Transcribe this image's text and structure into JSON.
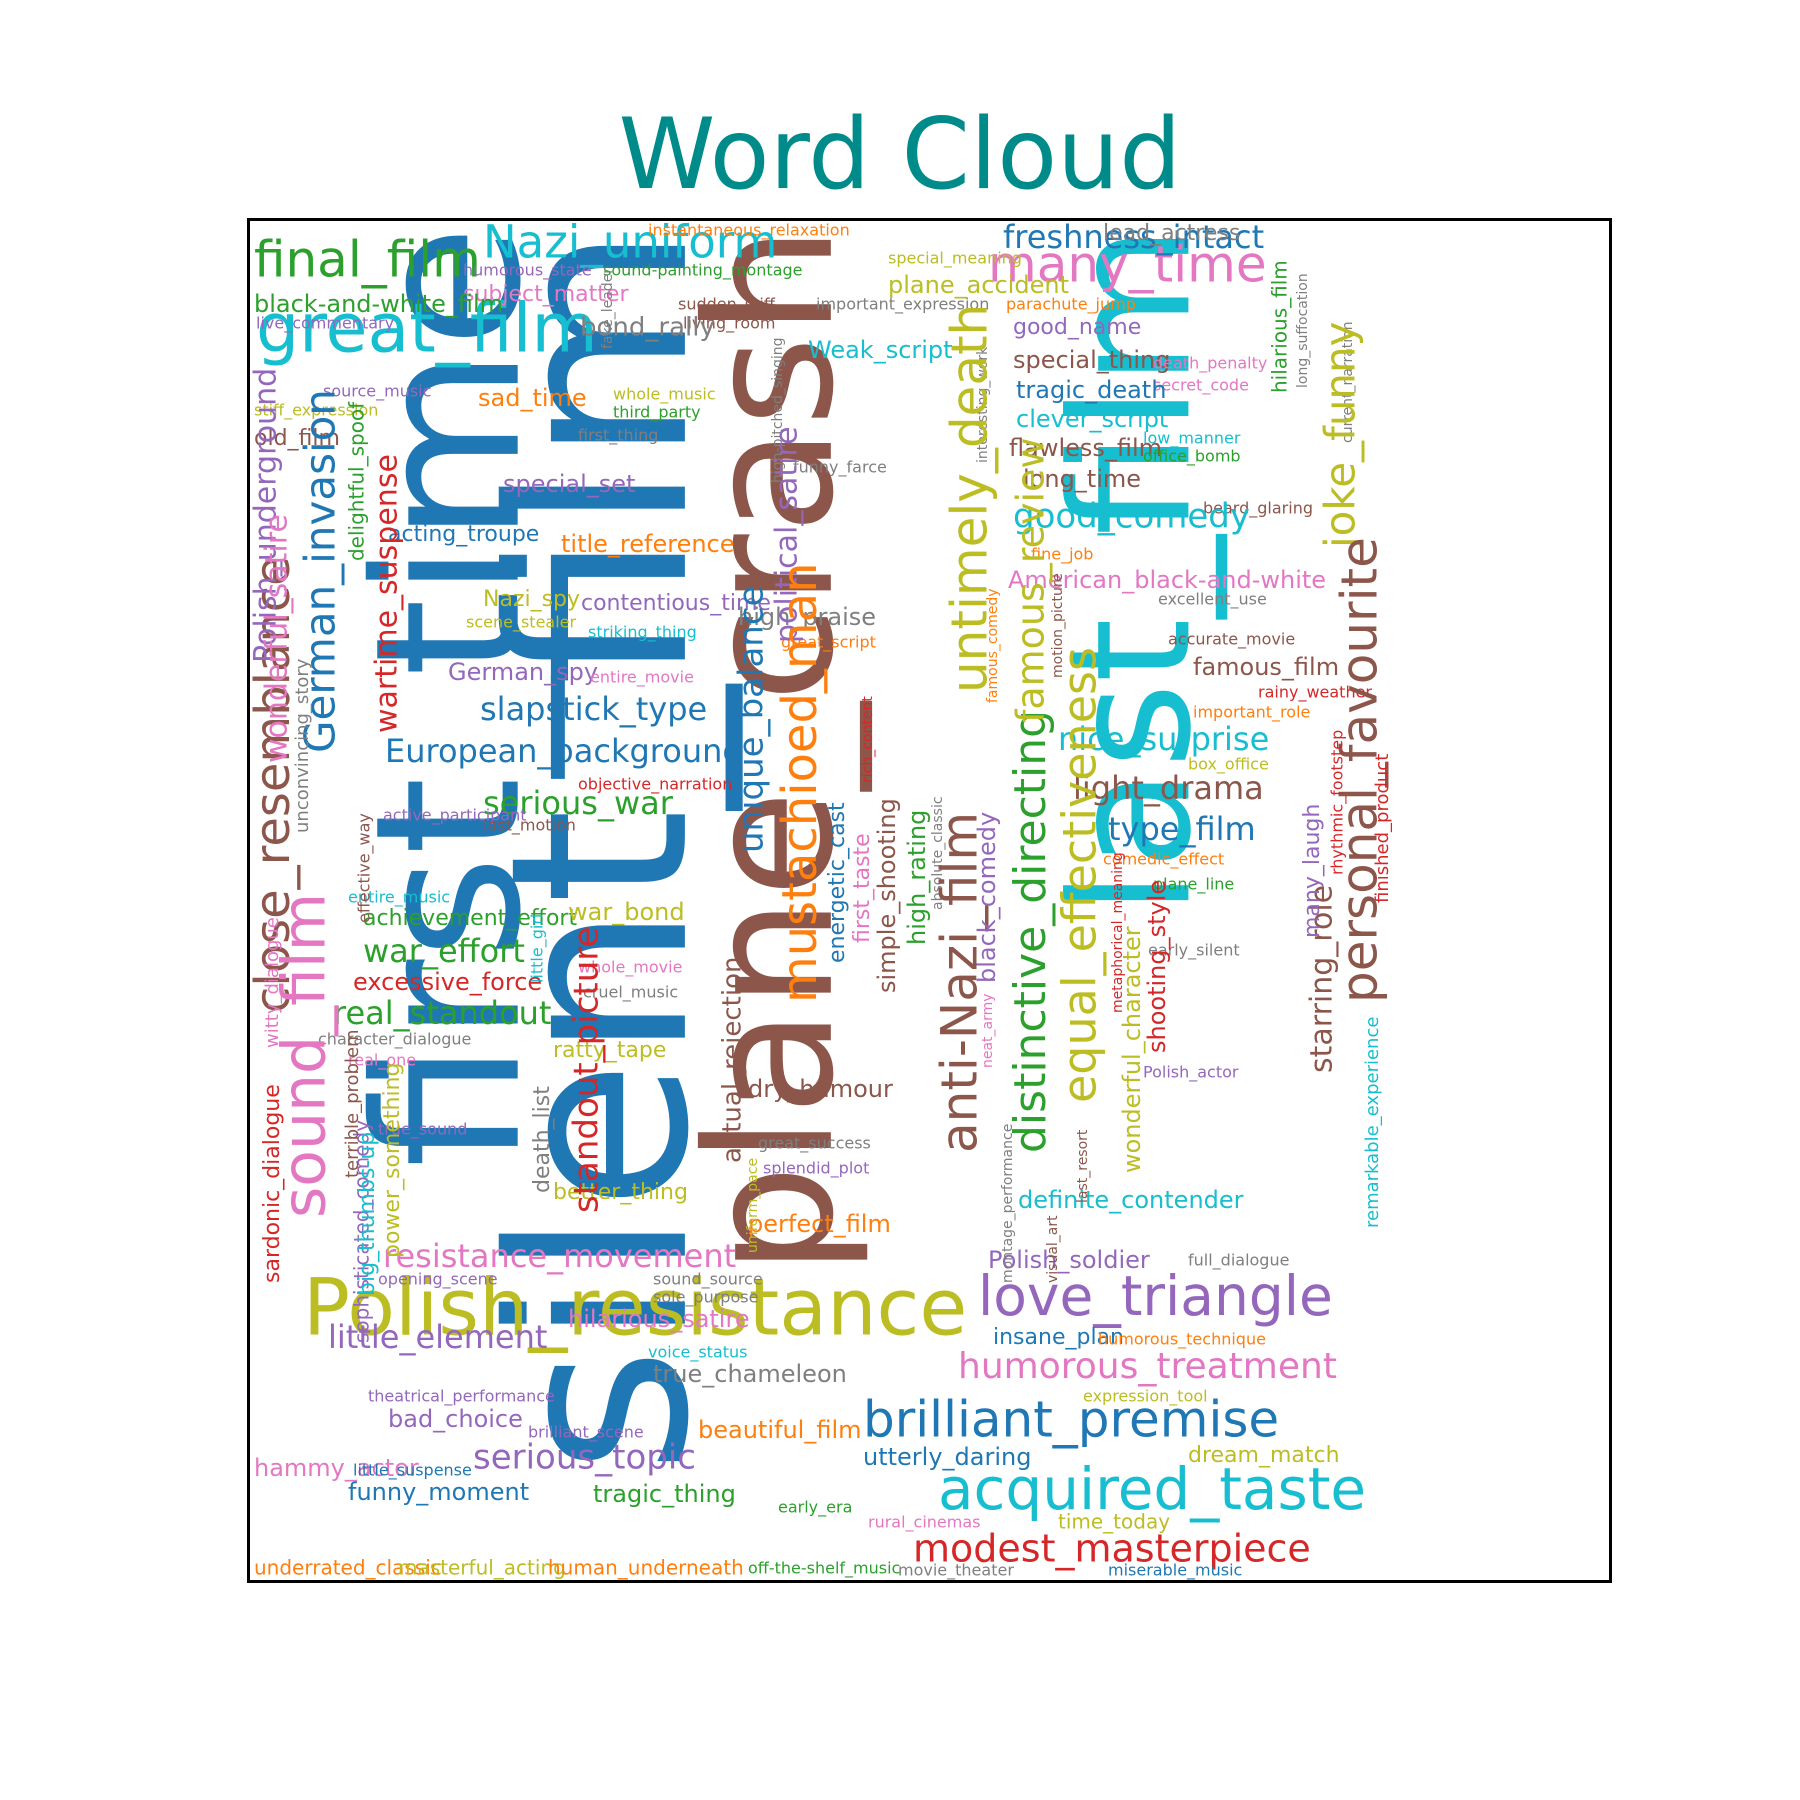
{
  "title": "Word Cloud",
  "palette": {
    "blue": "#1f77b4",
    "orange": "#ff7f0e",
    "green": "#2ca02c",
    "red": "#d62728",
    "purple": "#9467bd",
    "brown": "#8c564b",
    "pink": "#e377c2",
    "gray": "#7f7f7f",
    "olive": "#bcbd22",
    "cyan": "#17becf"
  },
  "words": [
    {
      "text": "plane_crash",
      "color": "brown"
    },
    {
      "text": "silent_film",
      "color": "blue"
    },
    {
      "text": "first_time",
      "color": "blue"
    },
    {
      "text": "last_film",
      "color": "cyan"
    },
    {
      "text": "Polish_resistance",
      "color": "olive"
    },
    {
      "text": "great_film",
      "color": "cyan"
    },
    {
      "text": "final_film",
      "color": "green"
    },
    {
      "text": "Nazi_uniform",
      "color": "cyan"
    },
    {
      "text": "many_time",
      "color": "pink"
    },
    {
      "text": "freshness_intact",
      "color": "blue"
    },
    {
      "text": "lead_actress",
      "color": "gray"
    },
    {
      "text": "instantaneous_relaxation",
      "color": "orange"
    },
    {
      "text": "special_meaning",
      "color": "olive"
    },
    {
      "text": "plane_accident",
      "color": "olive"
    },
    {
      "text": "humorous_state",
      "color": "purple"
    },
    {
      "text": "sound-painting_montage",
      "color": "green"
    },
    {
      "text": "subject_matter",
      "color": "pink"
    },
    {
      "text": "black-and-white_film",
      "color": "green"
    },
    {
      "text": "live_commentary",
      "color": "purple"
    },
    {
      "text": "sudden_stiff",
      "color": "brown"
    },
    {
      "text": "important_expression",
      "color": "gray"
    },
    {
      "text": "parachute_jump",
      "color": "orange"
    },
    {
      "text": "living_room",
      "color": "brown"
    },
    {
      "text": "bond_rally",
      "color": "gray"
    },
    {
      "text": "good_name",
      "color": "purple"
    },
    {
      "text": "fake_leader",
      "color": "gray"
    },
    {
      "text": "Weak_script",
      "color": "cyan"
    },
    {
      "text": "special_thing",
      "color": "brown"
    },
    {
      "text": "death_penalty",
      "color": "pink"
    },
    {
      "text": "secret_code",
      "color": "pink"
    },
    {
      "text": "tragic_death",
      "color": "blue"
    },
    {
      "text": "clever_script",
      "color": "cyan"
    },
    {
      "text": "source_music",
      "color": "purple"
    },
    {
      "text": "whole_music",
      "color": "olive"
    },
    {
      "text": "third_party",
      "color": "green"
    },
    {
      "text": "sad_time",
      "color": "orange"
    },
    {
      "text": "stiff_expression",
      "color": "olive"
    },
    {
      "text": "old_film",
      "color": "brown"
    },
    {
      "text": "first_thing",
      "color": "gray"
    },
    {
      "text": "flawless_film",
      "color": "brown"
    },
    {
      "text": "low_manner",
      "color": "cyan"
    },
    {
      "text": "office_bomb",
      "color": "green"
    },
    {
      "text": "hilarious_film",
      "color": "green"
    },
    {
      "text": "long_suffocation",
      "color": "gray"
    },
    {
      "text": "current_narration",
      "color": "gray"
    },
    {
      "text": "funny_farce",
      "color": "gray"
    },
    {
      "text": "long_time",
      "color": "brown"
    },
    {
      "text": "special_set",
      "color": "purple"
    },
    {
      "text": "beard_glaring",
      "color": "brown"
    },
    {
      "text": "good_comedy",
      "color": "cyan"
    },
    {
      "text": "acting_troupe",
      "color": "blue"
    },
    {
      "text": "title_reference",
      "color": "orange"
    },
    {
      "text": "high-pitched_singing",
      "color": "gray"
    },
    {
      "text": "interesting_work",
      "color": "gray"
    },
    {
      "text": "fine_job",
      "color": "orange"
    },
    {
      "text": "American_black-and-white",
      "color": "pink"
    },
    {
      "text": "Nazi_spy",
      "color": "olive"
    },
    {
      "text": "excellent_use",
      "color": "gray"
    },
    {
      "text": "contentious_time",
      "color": "purple"
    },
    {
      "text": "high_praise",
      "color": "gray"
    },
    {
      "text": "scene_stealer",
      "color": "olive"
    },
    {
      "text": "striking_thing",
      "color": "cyan"
    },
    {
      "text": "great_script",
      "color": "orange"
    },
    {
      "text": "accurate_movie",
      "color": "brown"
    },
    {
      "text": "German_spy",
      "color": "purple"
    },
    {
      "text": "entire_movie",
      "color": "pink"
    },
    {
      "text": "famous_film",
      "color": "brown"
    },
    {
      "text": "rainy_weather",
      "color": "red"
    },
    {
      "text": "important_role",
      "color": "orange"
    },
    {
      "text": "slapstick_type",
      "color": "blue"
    },
    {
      "text": "nice_surprise",
      "color": "cyan"
    },
    {
      "text": "European_background",
      "color": "blue"
    },
    {
      "text": "box_office",
      "color": "olive"
    },
    {
      "text": "objective_narration",
      "color": "red"
    },
    {
      "text": "light_drama",
      "color": "brown"
    },
    {
      "text": "serious_war",
      "color": "green"
    },
    {
      "text": "active_participant",
      "color": "purple"
    },
    {
      "text": "last_motion",
      "color": "brown"
    },
    {
      "text": "type_film",
      "color": "blue"
    },
    {
      "text": "comedic_effect",
      "color": "orange"
    },
    {
      "text": "entire_music",
      "color": "cyan"
    },
    {
      "text": "plane_line",
      "color": "green"
    },
    {
      "text": "achievement_effort",
      "color": "green"
    },
    {
      "text": "war_bond",
      "color": "olive"
    },
    {
      "text": "war_effort",
      "color": "green"
    },
    {
      "text": "early_silent",
      "color": "gray"
    },
    {
      "text": "whole_movie",
      "color": "pink"
    },
    {
      "text": "excessive_force",
      "color": "red"
    },
    {
      "text": "cruel_music",
      "color": "gray"
    },
    {
      "text": "real_standout",
      "color": "green"
    },
    {
      "text": "character_dialogue",
      "color": "gray"
    },
    {
      "text": "ratty_tape",
      "color": "olive"
    },
    {
      "text": "real_one",
      "color": "pink"
    },
    {
      "text": "Polish_actor",
      "color": "purple"
    },
    {
      "text": "dry_humour",
      "color": "brown"
    },
    {
      "text": "true_sound",
      "color": "purple"
    },
    {
      "text": "great_success",
      "color": "gray"
    },
    {
      "text": "splendid_plot",
      "color": "purple"
    },
    {
      "text": "better_thing",
      "color": "olive"
    },
    {
      "text": "definite_contender",
      "color": "cyan"
    },
    {
      "text": "perfect_film",
      "color": "orange"
    },
    {
      "text": "resistance_movement",
      "color": "pink"
    },
    {
      "text": "Polish_soldier",
      "color": "purple"
    },
    {
      "text": "full_dialogue",
      "color": "gray"
    },
    {
      "text": "opening_scene",
      "color": "purple"
    },
    {
      "text": "sound_source",
      "color": "gray"
    },
    {
      "text": "sole_purpose",
      "color": "gray"
    },
    {
      "text": "love_triangle",
      "color": "purple"
    },
    {
      "text": "hilarious_satire",
      "color": "pink"
    },
    {
      "text": "little_element",
      "color": "purple"
    },
    {
      "text": "insane_plan",
      "color": "blue"
    },
    {
      "text": "humorous_technique",
      "color": "orange"
    },
    {
      "text": "voice_status",
      "color": "cyan"
    },
    {
      "text": "humorous_treatment",
      "color": "pink"
    },
    {
      "text": "true_chameleon",
      "color": "gray"
    },
    {
      "text": "theatrical_performance",
      "color": "purple"
    },
    {
      "text": "expression_tool",
      "color": "olive"
    },
    {
      "text": "brilliant_premise",
      "color": "blue"
    },
    {
      "text": "bad_choice",
      "color": "purple"
    },
    {
      "text": "brilliant_scene",
      "color": "purple"
    },
    {
      "text": "beautiful_film",
      "color": "orange"
    },
    {
      "text": "serious_topic",
      "color": "purple"
    },
    {
      "text": "utterly_daring",
      "color": "blue"
    },
    {
      "text": "dream_match",
      "color": "olive"
    },
    {
      "text": "hammy_actor",
      "color": "pink"
    },
    {
      "text": "little_suspense",
      "color": "blue"
    },
    {
      "text": "acquired_taste",
      "color": "cyan"
    },
    {
      "text": "funny_moment",
      "color": "blue"
    },
    {
      "text": "tragic_thing",
      "color": "green"
    },
    {
      "text": "early_era",
      "color": "green"
    },
    {
      "text": "rural_cinemas",
      "color": "pink"
    },
    {
      "text": "time_today",
      "color": "olive"
    },
    {
      "text": "modest_masterpiece",
      "color": "red"
    },
    {
      "text": "underrated_classic",
      "color": "orange"
    },
    {
      "text": "masterful_acting",
      "color": "olive"
    },
    {
      "text": "human_underneath",
      "color": "orange"
    },
    {
      "text": "off-the-shelf_music",
      "color": "green"
    },
    {
      "text": "movie_theater",
      "color": "gray"
    },
    {
      "text": "miserable_music",
      "color": "blue"
    },
    {
      "text": "close_resemblance",
      "color": "brown"
    },
    {
      "text": "Polish_underground",
      "color": "purple"
    },
    {
      "text": "wonderful_satire",
      "color": "pink"
    },
    {
      "text": "sound_film",
      "color": "pink"
    },
    {
      "text": "German_invasion",
      "color": "blue"
    },
    {
      "text": "wartime_suspense",
      "color": "red"
    },
    {
      "text": "delightful_spoof",
      "color": "green"
    },
    {
      "text": "unconvincing_story",
      "color": "gray"
    },
    {
      "text": "witty_dialogue",
      "color": "pink"
    },
    {
      "text": "effective_way",
      "color": "brown"
    },
    {
      "text": "little_girl",
      "color": "cyan"
    },
    {
      "text": "sardonic_dialogue",
      "color": "red"
    },
    {
      "text": "sophisticated_comedy",
      "color": "purple"
    },
    {
      "text": "terrible_problem",
      "color": "brown"
    },
    {
      "text": "big_thumbs-up",
      "color": "cyan"
    },
    {
      "text": "power_something",
      "color": "olive"
    },
    {
      "text": "death_list",
      "color": "gray"
    },
    {
      "text": "standout_picture",
      "color": "red"
    },
    {
      "text": "actual_rejection",
      "color": "brown"
    },
    {
      "text": "uniform_pace",
      "color": "olive"
    },
    {
      "text": "unique_balance",
      "color": "blue"
    },
    {
      "text": "political_satire",
      "color": "purple"
    },
    {
      "text": "mustachioed_man",
      "color": "orange"
    },
    {
      "text": "energetic_cast",
      "color": "blue"
    },
    {
      "text": "first_taste",
      "color": "pink"
    },
    {
      "text": "rich_content",
      "color": "red"
    },
    {
      "text": "simple_shooting",
      "color": "brown"
    },
    {
      "text": "high_rating",
      "color": "green"
    },
    {
      "text": "absolute_classic",
      "color": "gray"
    },
    {
      "text": "anti-Nazi_film",
      "color": "brown"
    },
    {
      "text": "untimely_death",
      "color": "olive"
    },
    {
      "text": "famous_comedy",
      "color": "orange"
    },
    {
      "text": "black_comedy",
      "color": "purple"
    },
    {
      "text": "neat_army",
      "color": "pink"
    },
    {
      "text": "montage_performance",
      "color": "gray"
    },
    {
      "text": "motion_picture",
      "color": "brown"
    },
    {
      "text": "distinctive_directing",
      "color": "green"
    },
    {
      "text": "visual_art",
      "color": "brown"
    },
    {
      "text": "last_resort",
      "color": "brown"
    },
    {
      "text": "equal_effectiveness",
      "color": "olive"
    },
    {
      "text": "famous_review",
      "color": "olive"
    },
    {
      "text": "wonderful_character",
      "color": "olive"
    },
    {
      "text": "metaphorical_meaning",
      "color": "red"
    },
    {
      "text": "shooting_style",
      "color": "red"
    },
    {
      "text": "joke_funny",
      "color": "olive"
    },
    {
      "text": "personal_favourite",
      "color": "brown"
    },
    {
      "text": "starring_role",
      "color": "brown"
    },
    {
      "text": "many_laugh",
      "color": "purple"
    },
    {
      "text": "rhythmic_footstep",
      "color": "red"
    },
    {
      "text": "remarkable_experience",
      "color": "cyan"
    },
    {
      "text": "finished_product",
      "color": "red"
    }
  ]
}
